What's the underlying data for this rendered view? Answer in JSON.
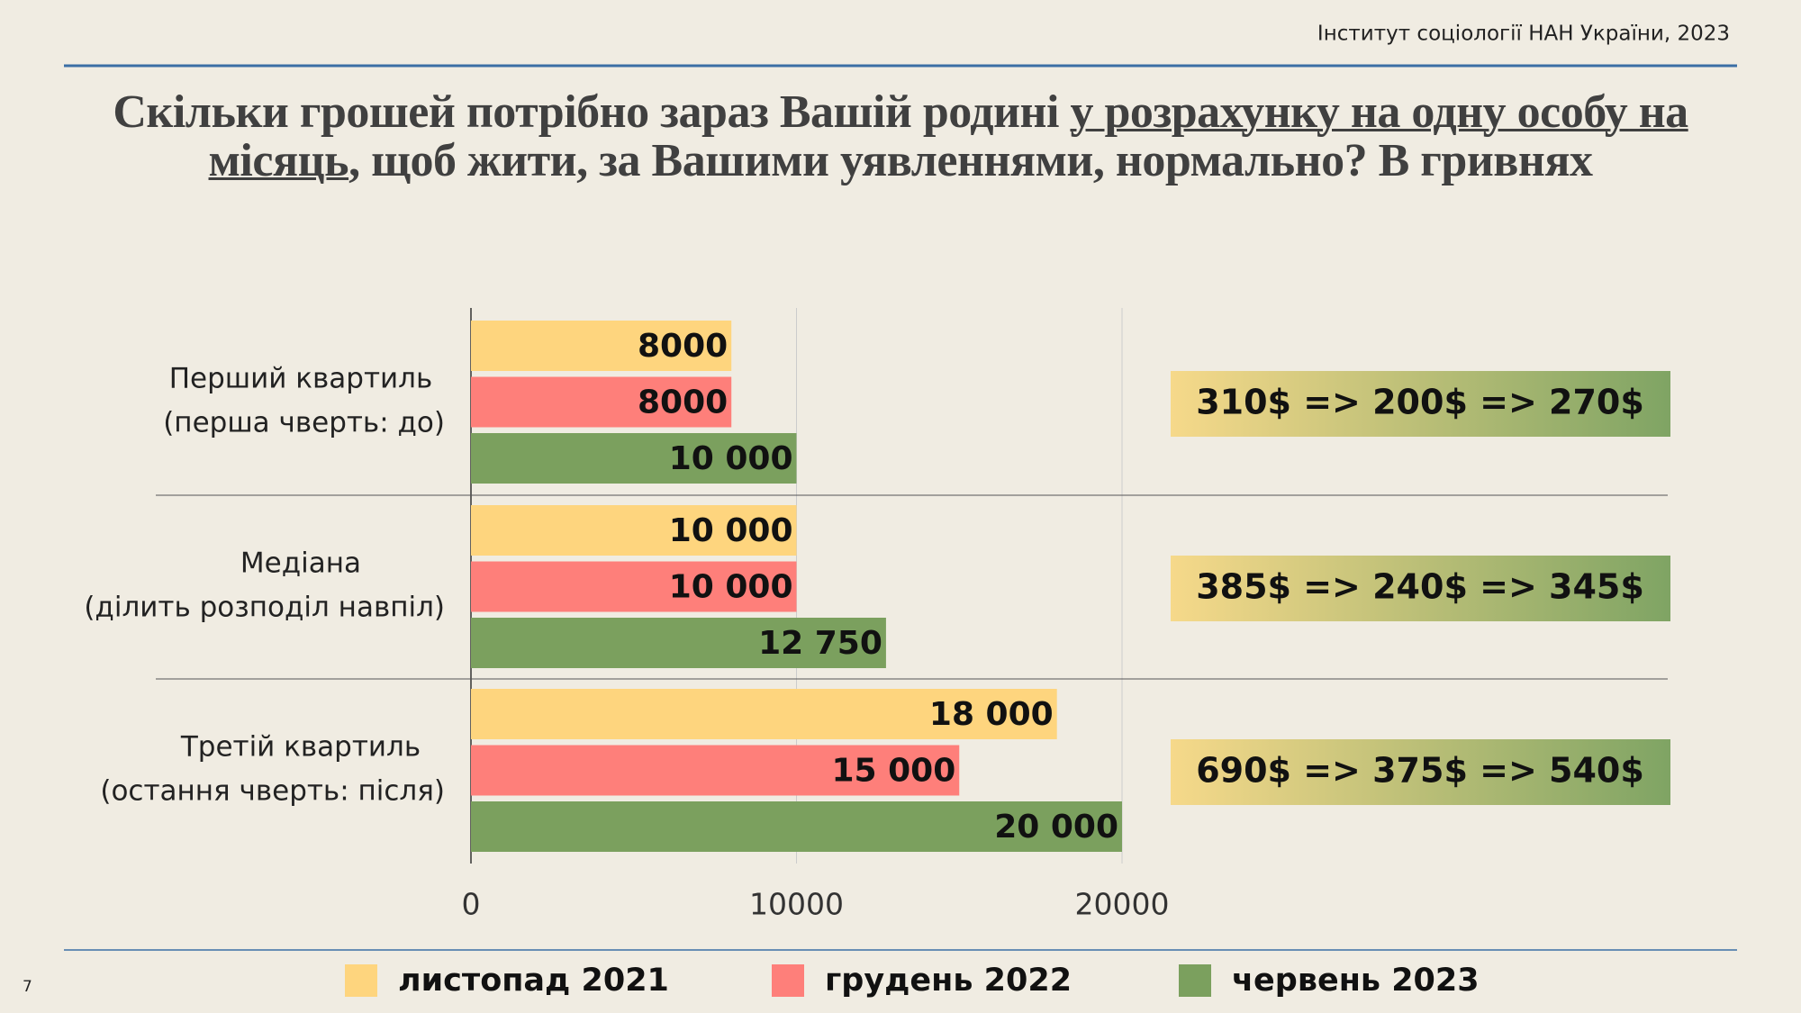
{
  "chart_data": {
    "type": "bar",
    "orientation": "horizontal",
    "source": "Інститут соціології НАН України, 2023",
    "page_number": "7",
    "title": [
      "Скільки грошей потрібно зараз Вашій родині ",
      "у розрахунку на одну особу на місяць",
      ", щоб жити, за Вашими уявленнями, нормально? В гривнях"
    ],
    "title_underlined": [
      false,
      true,
      false
    ],
    "categories": [
      "Перший квартиль",
      "Медіана",
      "Третій квартиль"
    ],
    "category_notes": [
      "(перша чверть: до)",
      "(ділить розподіл навпіл)",
      "(остання чверть: після)"
    ],
    "series": [
      {
        "name": "листопад 2021",
        "color": "#fed57e",
        "values": [
          8000,
          10000,
          18000
        ],
        "value_labels": [
          "8000",
          "10 000",
          "18 000"
        ]
      },
      {
        "name": "грудень 2022",
        "color": "#fe7f7a",
        "values": [
          8000,
          10000,
          15000
        ],
        "value_labels": [
          "8000",
          "10 000",
          "15 000"
        ]
      },
      {
        "name": "червень 2023",
        "color": "#7ba05e",
        "values": [
          10000,
          12750,
          20000
        ],
        "value_labels": [
          "10 000",
          "12 750",
          "20 000"
        ]
      }
    ],
    "annotations": [
      "310$ => 200$ => 270$",
      "385$ => 240$ => 345$",
      "690$ => 375$ => 540$"
    ],
    "xlim": [
      0,
      20000
    ],
    "xticks": [
      0,
      10000,
      20000
    ],
    "grid": true,
    "legend": "bottom"
  }
}
